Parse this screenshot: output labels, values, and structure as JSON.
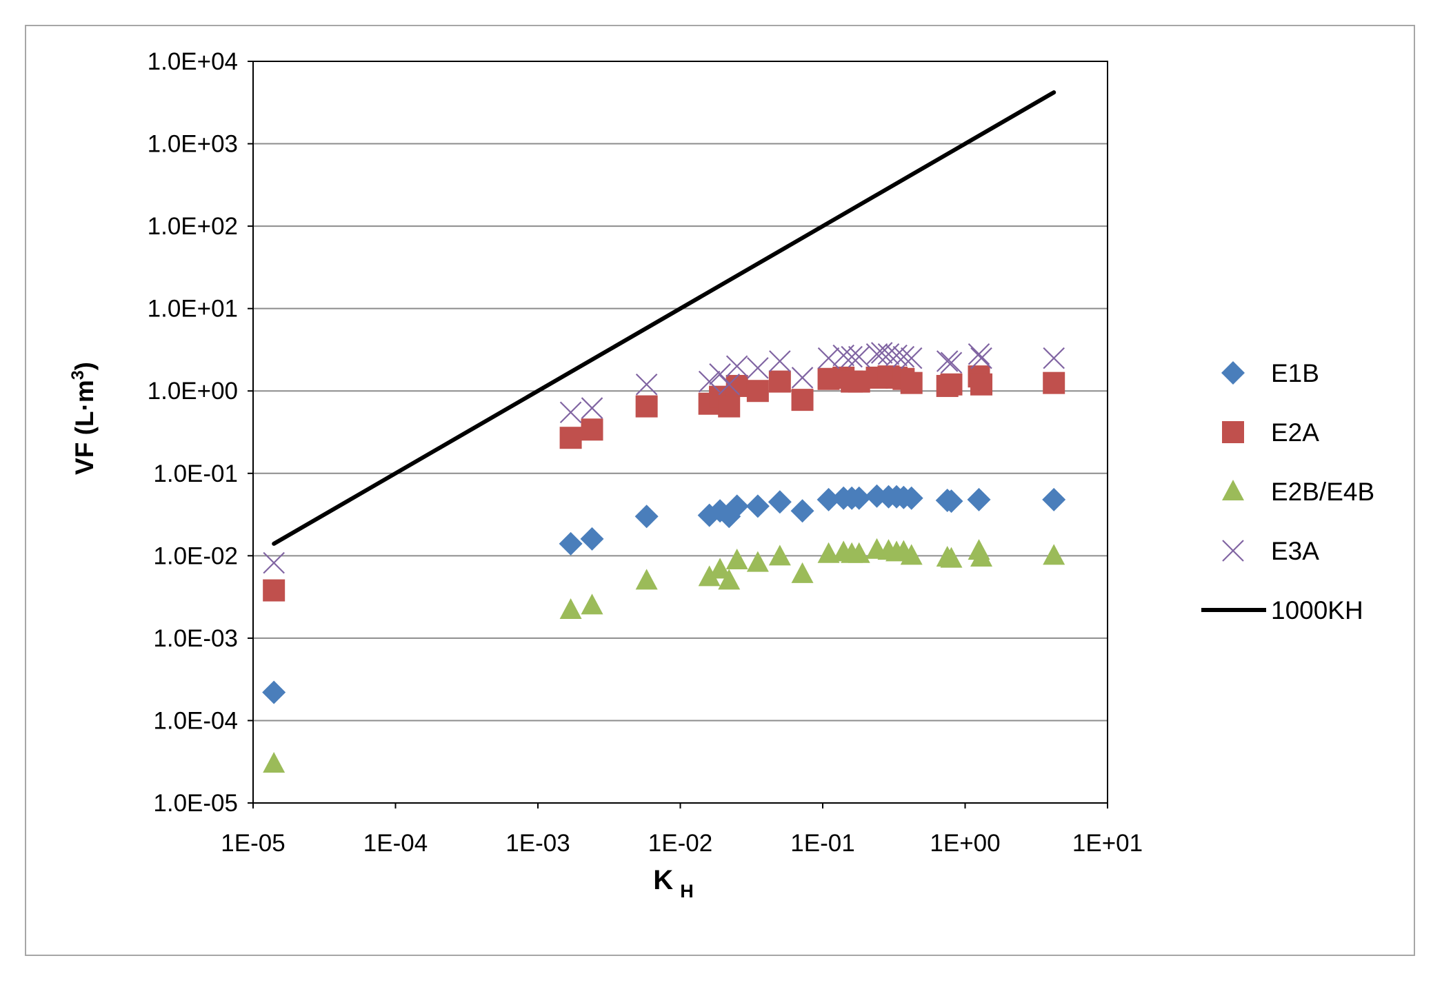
{
  "chart_data": {
    "type": "scatter",
    "title": "",
    "xlabel": {
      "main": "K",
      "sub": "H"
    },
    "ylabel": {
      "main": "VF (L·m",
      "sup": "3",
      "close": ")"
    },
    "xscale": "log",
    "yscale": "log",
    "xlim": [
      1e-05,
      10
    ],
    "ylim": [
      1e-05,
      10000
    ],
    "x_ticks": [
      {
        "value": 1e-05,
        "label": "1E-05"
      },
      {
        "value": 0.0001,
        "label": "1E-04"
      },
      {
        "value": 0.001,
        "label": "1E-03"
      },
      {
        "value": 0.01,
        "label": "1E-02"
      },
      {
        "value": 0.1,
        "label": "1E-01"
      },
      {
        "value": 1,
        "label": "1E+00"
      },
      {
        "value": 10,
        "label": "1E+01"
      }
    ],
    "y_ticks": [
      {
        "value": 1e-05,
        "label": "1.0E-05"
      },
      {
        "value": 0.0001,
        "label": "1.0E-04"
      },
      {
        "value": 0.001,
        "label": "1.0E-03"
      },
      {
        "value": 0.01,
        "label": "1.0E-02"
      },
      {
        "value": 0.1,
        "label": "1.0E-01"
      },
      {
        "value": 1,
        "label": "1.0E+00"
      },
      {
        "value": 10,
        "label": "1.0E+01"
      },
      {
        "value": 100,
        "label": "1.0E+02"
      },
      {
        "value": 1000,
        "label": "1.0E+03"
      },
      {
        "value": 10000,
        "label": "1.0E+04"
      }
    ],
    "grid": {
      "y_major": true,
      "x_major": false
    },
    "legend_position": "right",
    "series": [
      {
        "name": "E1B",
        "marker": "diamond",
        "color": "#4a7ebb",
        "points": [
          [
            1.4e-05,
            0.00022
          ],
          [
            0.0017,
            0.014
          ],
          [
            0.0024,
            0.016
          ],
          [
            0.0058,
            0.03
          ],
          [
            0.016,
            0.031
          ],
          [
            0.019,
            0.035
          ],
          [
            0.022,
            0.03
          ],
          [
            0.025,
            0.04
          ],
          [
            0.035,
            0.04
          ],
          [
            0.05,
            0.045
          ],
          [
            0.072,
            0.035
          ],
          [
            0.11,
            0.048
          ],
          [
            0.14,
            0.05
          ],
          [
            0.16,
            0.05
          ],
          [
            0.18,
            0.05
          ],
          [
            0.24,
            0.053
          ],
          [
            0.29,
            0.052
          ],
          [
            0.33,
            0.052
          ],
          [
            0.37,
            0.051
          ],
          [
            0.42,
            0.05
          ],
          [
            0.75,
            0.047
          ],
          [
            0.8,
            0.046
          ],
          [
            1.25,
            0.048
          ],
          [
            4.2,
            0.048
          ]
        ]
      },
      {
        "name": "E2A",
        "marker": "square",
        "color": "#c0504d",
        "points": [
          [
            1.4e-05,
            0.0038
          ],
          [
            0.0017,
            0.27
          ],
          [
            0.0024,
            0.34
          ],
          [
            0.0058,
            0.65
          ],
          [
            0.016,
            0.7
          ],
          [
            0.019,
            0.85
          ],
          [
            0.022,
            0.65
          ],
          [
            0.025,
            1.15
          ],
          [
            0.035,
            1.0
          ],
          [
            0.05,
            1.3
          ],
          [
            0.072,
            0.78
          ],
          [
            0.11,
            1.4
          ],
          [
            0.14,
            1.45
          ],
          [
            0.16,
            1.3
          ],
          [
            0.18,
            1.3
          ],
          [
            0.24,
            1.45
          ],
          [
            0.29,
            1.5
          ],
          [
            0.33,
            1.45
          ],
          [
            0.37,
            1.4
          ],
          [
            0.42,
            1.25
          ],
          [
            0.75,
            1.15
          ],
          [
            0.8,
            1.2
          ],
          [
            1.25,
            1.5
          ],
          [
            1.3,
            1.2
          ],
          [
            4.2,
            1.25
          ]
        ]
      },
      {
        "name": "E2B/E4B",
        "marker": "triangle",
        "color": "#9bbb59",
        "points": [
          [
            1.4e-05,
            3e-05
          ],
          [
            0.0017,
            0.0022
          ],
          [
            0.0024,
            0.0025
          ],
          [
            0.0058,
            0.005
          ],
          [
            0.016,
            0.0055
          ],
          [
            0.019,
            0.0068
          ],
          [
            0.022,
            0.005
          ],
          [
            0.025,
            0.0088
          ],
          [
            0.035,
            0.0082
          ],
          [
            0.05,
            0.0098
          ],
          [
            0.072,
            0.006
          ],
          [
            0.11,
            0.0105
          ],
          [
            0.14,
            0.011
          ],
          [
            0.16,
            0.0105
          ],
          [
            0.18,
            0.0105
          ],
          [
            0.24,
            0.0118
          ],
          [
            0.29,
            0.0115
          ],
          [
            0.33,
            0.011
          ],
          [
            0.37,
            0.0112
          ],
          [
            0.42,
            0.01
          ],
          [
            0.75,
            0.0095
          ],
          [
            0.8,
            0.0092
          ],
          [
            1.25,
            0.0115
          ],
          [
            1.3,
            0.0095
          ],
          [
            4.2,
            0.01
          ]
        ]
      },
      {
        "name": "E3A",
        "marker": "x",
        "color": "#8064a2",
        "points": [
          [
            1.4e-05,
            0.0082
          ],
          [
            0.0017,
            0.55
          ],
          [
            0.0024,
            0.62
          ],
          [
            0.0058,
            1.2
          ],
          [
            0.016,
            1.3
          ],
          [
            0.019,
            1.6
          ],
          [
            0.022,
            1.2
          ],
          [
            0.025,
            2.0
          ],
          [
            0.035,
            1.9
          ],
          [
            0.05,
            2.3
          ],
          [
            0.072,
            1.45
          ],
          [
            0.11,
            2.5
          ],
          [
            0.14,
            2.7
          ],
          [
            0.16,
            2.6
          ],
          [
            0.18,
            2.6
          ],
          [
            0.24,
            2.8
          ],
          [
            0.26,
            2.9
          ],
          [
            0.29,
            2.8
          ],
          [
            0.33,
            2.7
          ],
          [
            0.37,
            2.6
          ],
          [
            0.42,
            2.5
          ],
          [
            0.75,
            2.3
          ],
          [
            0.8,
            2.2
          ],
          [
            1.25,
            2.8
          ],
          [
            1.3,
            2.5
          ],
          [
            4.2,
            2.5
          ]
        ]
      },
      {
        "name": "1000KH",
        "marker": "line",
        "color": "#000000",
        "points": [
          [
            1.4e-05,
            0.014
          ],
          [
            4.2,
            4200
          ]
        ]
      }
    ]
  }
}
